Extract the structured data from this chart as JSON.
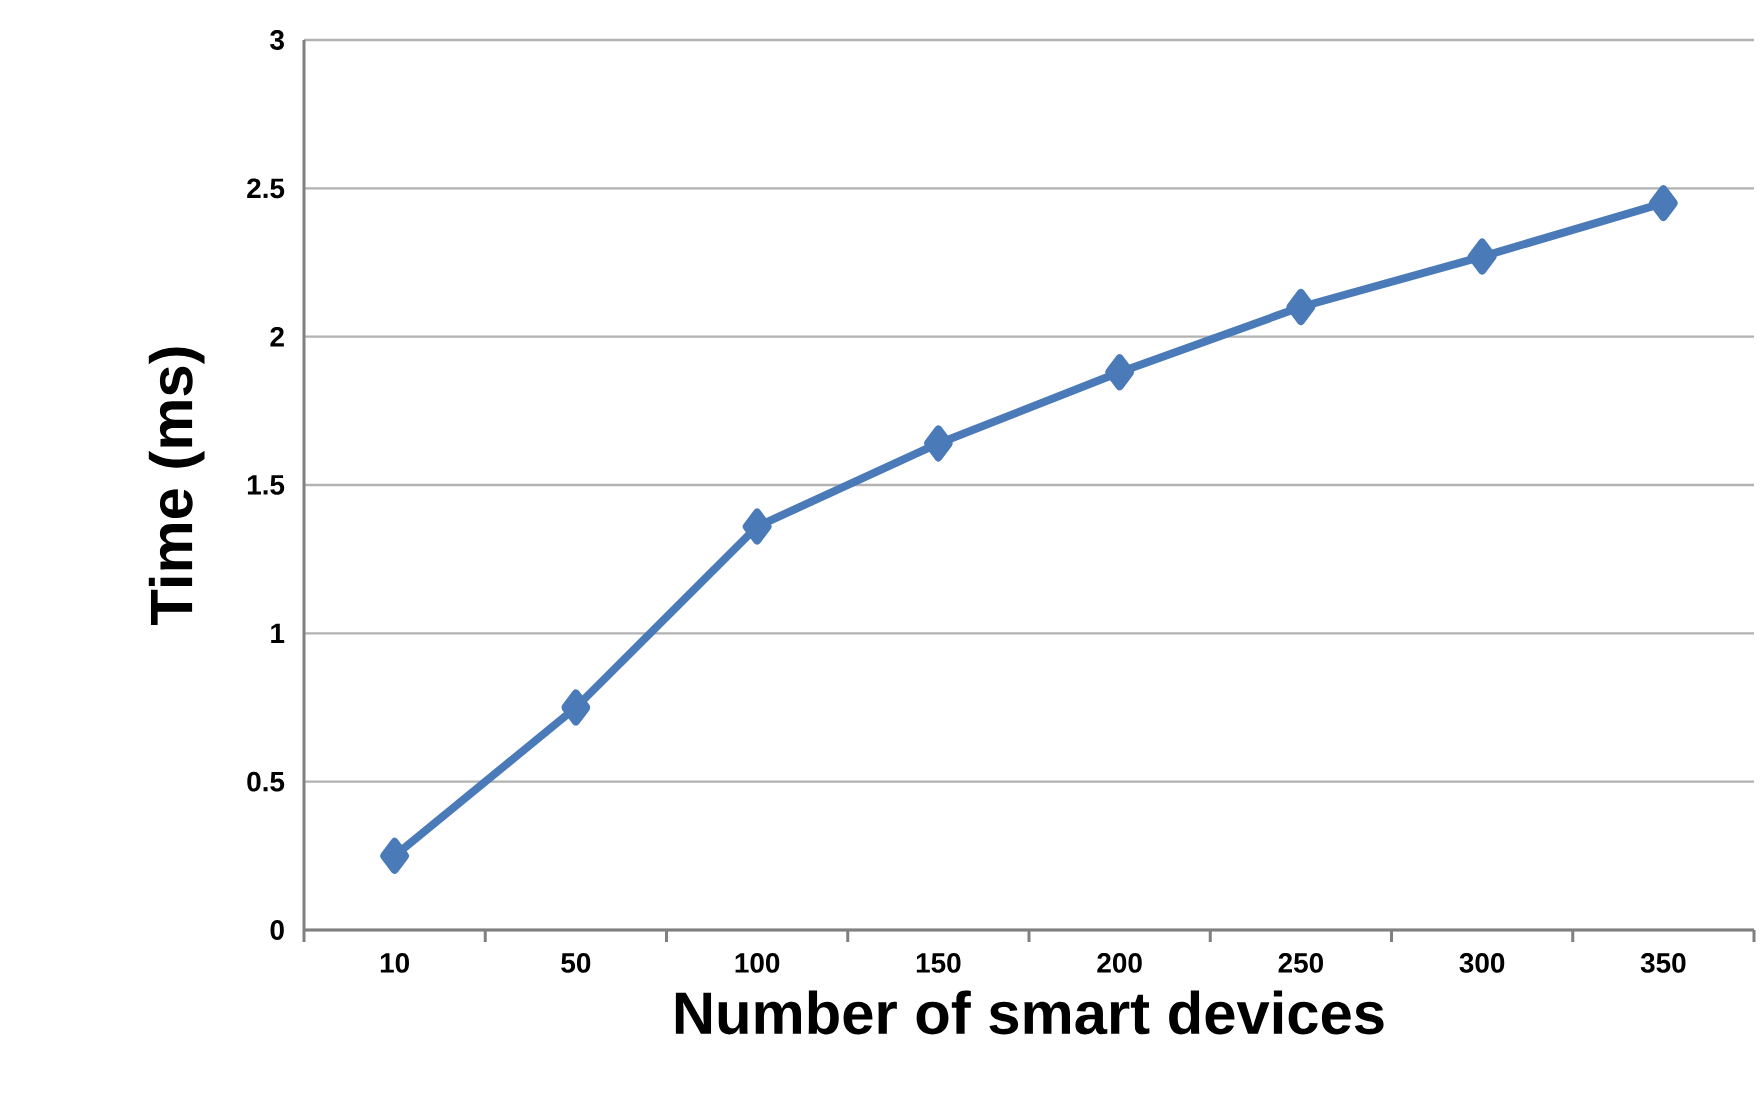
{
  "chart_data": {
    "type": "line",
    "xlabel": "Number of smart devices",
    "ylabel": "Time (ms)",
    "categories": [
      "10",
      "50",
      "100",
      "150",
      "200",
      "250",
      "300",
      "350"
    ],
    "series": [
      {
        "color": "#4a7ab8",
        "values": [
          0.25,
          0.75,
          1.36,
          1.64,
          1.88,
          2.1,
          2.27,
          2.45
        ]
      }
    ],
    "ylim": [
      0,
      3
    ],
    "yticks": [
      0,
      0.5,
      1,
      1.5,
      2,
      2.5,
      3
    ],
    "grid": "y",
    "marker": "diamond",
    "line_style": "solid"
  }
}
